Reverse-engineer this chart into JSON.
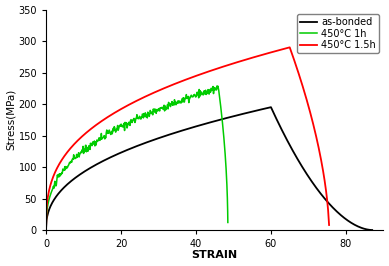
{
  "xlabel": "STRAIN",
  "ylabel": "Stress(MPa)",
  "xlim": [
    0,
    90
  ],
  "ylim": [
    0,
    350
  ],
  "xticks": [
    0,
    20,
    40,
    60,
    80
  ],
  "yticks": [
    0,
    50,
    100,
    150,
    200,
    250,
    300,
    350
  ],
  "legend": [
    "as-bonded",
    "450°C 1h",
    "450°C 1.5h"
  ],
  "colors": [
    "black",
    "#00cc00",
    "red"
  ],
  "background": "white",
  "black_peak_x": 60,
  "black_peak_y": 195,
  "black_end_x": 87,
  "green_peak_x": 46,
  "green_peak_y": 225,
  "green_end_x": 48.5,
  "red_peak_x": 65,
  "red_peak_y": 290,
  "red_end_x": 75.5
}
